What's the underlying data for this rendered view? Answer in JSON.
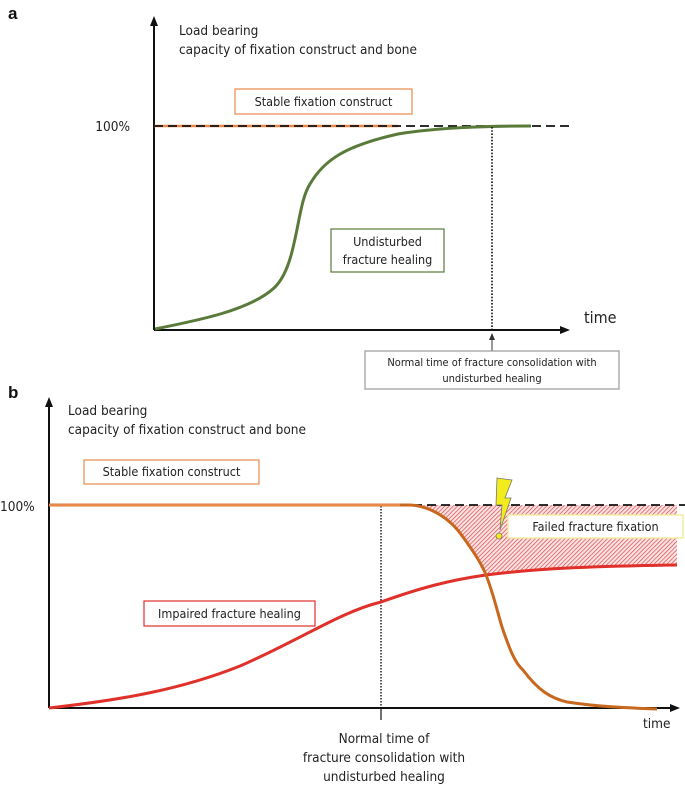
{
  "colors": {
    "axis": "#111111",
    "stable_fixation": "#e8894a",
    "undisturbed_healing": "#5a7a3a",
    "impaired_healing": "#e0302a",
    "failing_fixation": "#c8671e",
    "failure_hatch": "#e04848",
    "failure_box_border": "#f2ec9a",
    "lightning": "#f2ec1c",
    "note_box_border": "#9a9a9a"
  },
  "panel_a": {
    "label": "a",
    "y_label_line1": "Load bearing",
    "y_label_line2": "capacity of fixation construct and bone",
    "y_tick": "100%",
    "x_label": "time",
    "stable_box": "Stable fixation construct",
    "healing_box_line1": "Undisturbed",
    "healing_box_line2": "fracture healing",
    "note_line1": "Normal time of fracture consolidation with",
    "note_line2": "undisturbed healing",
    "arrow_icon": "arrow-up-icon"
  },
  "panel_b": {
    "label": "b",
    "y_label_line1": "Load bearing",
    "y_label_line2": "capacity of fixation construct and bone",
    "y_tick": "100%",
    "x_label": "time",
    "stable_box": "Stable fixation construct",
    "impaired_box": "Impaired fracture healing",
    "failure_box": "Failed fracture fixation",
    "failure_icon": "lightning-bolt-icon",
    "note_line1": "Normal time of",
    "note_line2": "fracture consolidation with",
    "note_line3": "undisturbed healing"
  }
}
